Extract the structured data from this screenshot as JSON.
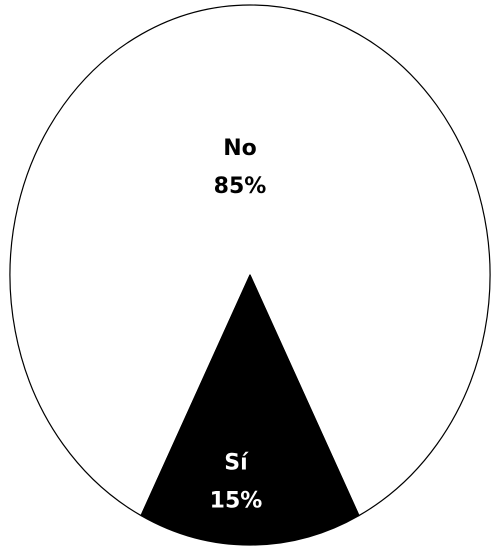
{
  "chart_data": {
    "type": "pie",
    "categories": [
      "No",
      "Sí"
    ],
    "values": [
      85,
      15
    ],
    "value_labels": [
      "85%",
      "15%"
    ],
    "colors": [
      "#ffffff",
      "#000000"
    ],
    "label_colors": [
      "#000000",
      "#ffffff"
    ],
    "edge_color": "#000000"
  }
}
